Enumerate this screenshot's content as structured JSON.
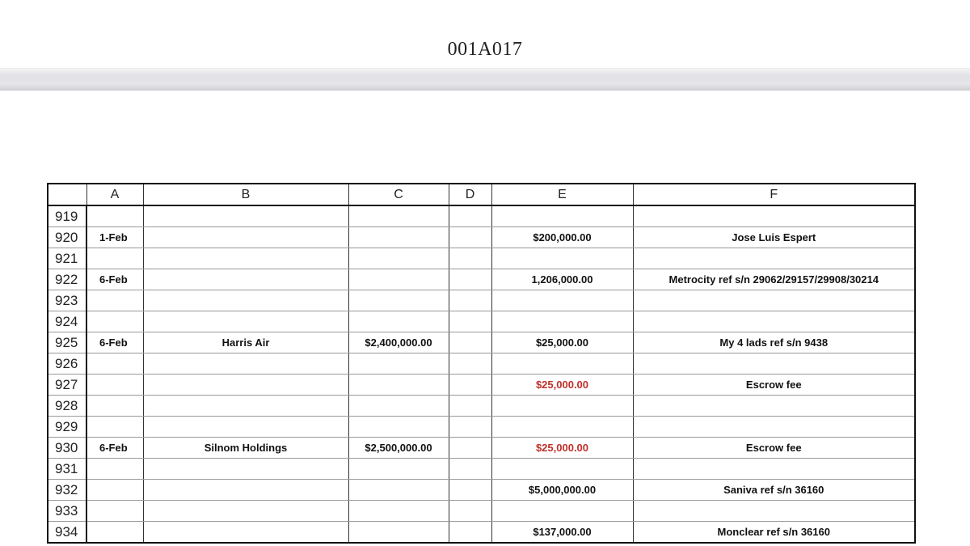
{
  "document": {
    "title": "001A017"
  },
  "table": {
    "columns": [
      "",
      "A",
      "B",
      "C",
      "D",
      "E",
      "F"
    ],
    "rows": [
      {
        "n": "919",
        "a": "",
        "b": "",
        "c": "",
        "d": "",
        "e": "",
        "f": ""
      },
      {
        "n": "920",
        "a": "1-Feb",
        "b": "",
        "c": "",
        "d": "",
        "e": "$200,000.00",
        "f": "Jose Luis Espert"
      },
      {
        "n": "921",
        "a": "",
        "b": "",
        "c": "",
        "d": "",
        "e": "",
        "f": ""
      },
      {
        "n": "922",
        "a": "6-Feb",
        "b": "",
        "c": "",
        "d": "",
        "e": "1,206,000.00",
        "f": "Metrocity ref s/n 29062/29157/29908/30214"
      },
      {
        "n": "923",
        "a": "",
        "b": "",
        "c": "",
        "d": "",
        "e": "",
        "f": ""
      },
      {
        "n": "924",
        "a": "",
        "b": "",
        "c": "",
        "d": "",
        "e": "",
        "f": ""
      },
      {
        "n": "925",
        "a": "6-Feb",
        "b": "Harris Air",
        "c": "$2,400,000.00",
        "d": "",
        "e": "$25,000.00",
        "f": "My 4 lads ref s/n 9438"
      },
      {
        "n": "926",
        "a": "",
        "b": "",
        "c": "",
        "d": "",
        "e": "",
        "f": ""
      },
      {
        "n": "927",
        "a": "",
        "b": "",
        "c": "",
        "d": "",
        "e": "$25,000.00",
        "e_red": true,
        "f": "Escrow fee"
      },
      {
        "n": "928",
        "a": "",
        "b": "",
        "c": "",
        "d": "",
        "e": "",
        "f": ""
      },
      {
        "n": "929",
        "a": "",
        "b": "",
        "c": "",
        "d": "",
        "e": "",
        "f": ""
      },
      {
        "n": "930",
        "a": "6-Feb",
        "b": "Silnom Holdings",
        "c": "$2,500,000.00",
        "d": "",
        "e": "$25,000.00",
        "e_red": true,
        "f": "Escrow fee"
      },
      {
        "n": "931",
        "a": "",
        "b": "",
        "c": "",
        "d": "",
        "e": "",
        "f": ""
      },
      {
        "n": "932",
        "a": "",
        "b": "",
        "c": "",
        "d": "",
        "e": "$5,000,000.00",
        "f": "Saniva ref s/n 36160"
      },
      {
        "n": "933",
        "a": "",
        "b": "",
        "c": "",
        "d": "",
        "e": "",
        "f": ""
      },
      {
        "n": "934",
        "a": "",
        "b": "",
        "c": "",
        "d": "",
        "e": "$137,000.00",
        "f": "Monclear ref s/n 36160"
      }
    ]
  },
  "colors": {
    "negative_text": "#c0302a"
  }
}
